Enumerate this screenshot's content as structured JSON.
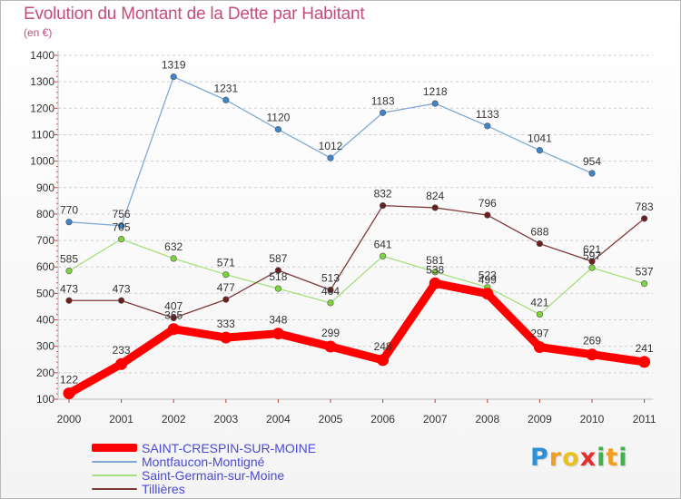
{
  "chart_data": {
    "type": "line",
    "title": "Evolution du Montant de la Dette par Habitant",
    "unit_label": "(en €)",
    "x": [
      "2000",
      "2001",
      "2002",
      "2003",
      "2004",
      "2005",
      "2006",
      "2007",
      "2008",
      "2009",
      "2010",
      "2011"
    ],
    "y_ticks": [
      "100",
      "200",
      "300",
      "400",
      "500",
      "600",
      "700",
      "800",
      "900",
      "1000",
      "1100",
      "1200",
      "1300",
      "1400"
    ],
    "ylim": [
      100,
      1400
    ],
    "grid": "horizontal-dashed",
    "legend_position": "bottom-left",
    "series": [
      {
        "name": "SAINT-CRESPIN-SUR-MOINE",
        "color": "#ff0000",
        "emphasis": true,
        "values": [
          122,
          233,
          365,
          333,
          348,
          299,
          248,
          538,
          499,
          297,
          269,
          241
        ]
      },
      {
        "name": "Montfaucon-Montigné",
        "color": "#7fa9d4",
        "marker_color": "#3f86c8",
        "values": [
          770,
          756,
          1319,
          1231,
          1120,
          1012,
          1183,
          1218,
          1133,
          1041,
          954,
          null
        ]
      },
      {
        "name": "Saint-Germain-sur-Moine",
        "color": "#a6e07e",
        "marker_color": "#7cd43c",
        "values": [
          585,
          705,
          632,
          571,
          518,
          464,
          641,
          581,
          523,
          421,
          597,
          537
        ]
      },
      {
        "name": "Tillières",
        "color": "#7f3939",
        "marker_color": "#6a2020",
        "values": [
          473,
          473,
          407,
          477,
          587,
          513,
          832,
          824,
          796,
          688,
          621,
          783
        ]
      }
    ]
  },
  "logo": {
    "letters": [
      {
        "ch": "P",
        "color": "#2f8fd6"
      },
      {
        "ch": "r",
        "color": "#f0a020"
      },
      {
        "ch": "o",
        "color": "#e8c020"
      },
      {
        "ch": "x",
        "color": "#e03030"
      },
      {
        "ch": "i",
        "color": "#3fb24a"
      },
      {
        "ch": "t",
        "color": "#f0a020"
      },
      {
        "ch": "i",
        "color": "#3fb24a"
      }
    ]
  }
}
